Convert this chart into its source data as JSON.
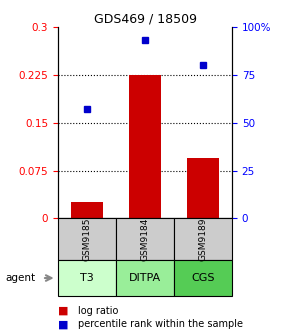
{
  "title": "GDS469 / 18509",
  "samples": [
    "GSM9185",
    "GSM9184",
    "GSM9189"
  ],
  "agents": [
    "T3",
    "DITPA",
    "CGS"
  ],
  "log_ratios": [
    0.025,
    0.225,
    0.095
  ],
  "percentile_ranks": [
    57,
    93,
    80
  ],
  "bar_color": "#cc0000",
  "dot_color": "#0000cc",
  "left_yticks": [
    0,
    0.075,
    0.15,
    0.225,
    0.3
  ],
  "right_ytick_labels": [
    "0",
    "25",
    "50",
    "75",
    "100%"
  ],
  "right_yticks": [
    0,
    25,
    50,
    75,
    100
  ],
  "ylim_left": [
    0,
    0.3
  ],
  "ylim_right": [
    0,
    100
  ],
  "agent_colors": [
    "#ccffcc",
    "#99ee99",
    "#55cc55"
  ],
  "sample_color": "#cccccc",
  "title_fontsize": 9,
  "label_fontsize": 7,
  "agent_label_fontsize": 8
}
